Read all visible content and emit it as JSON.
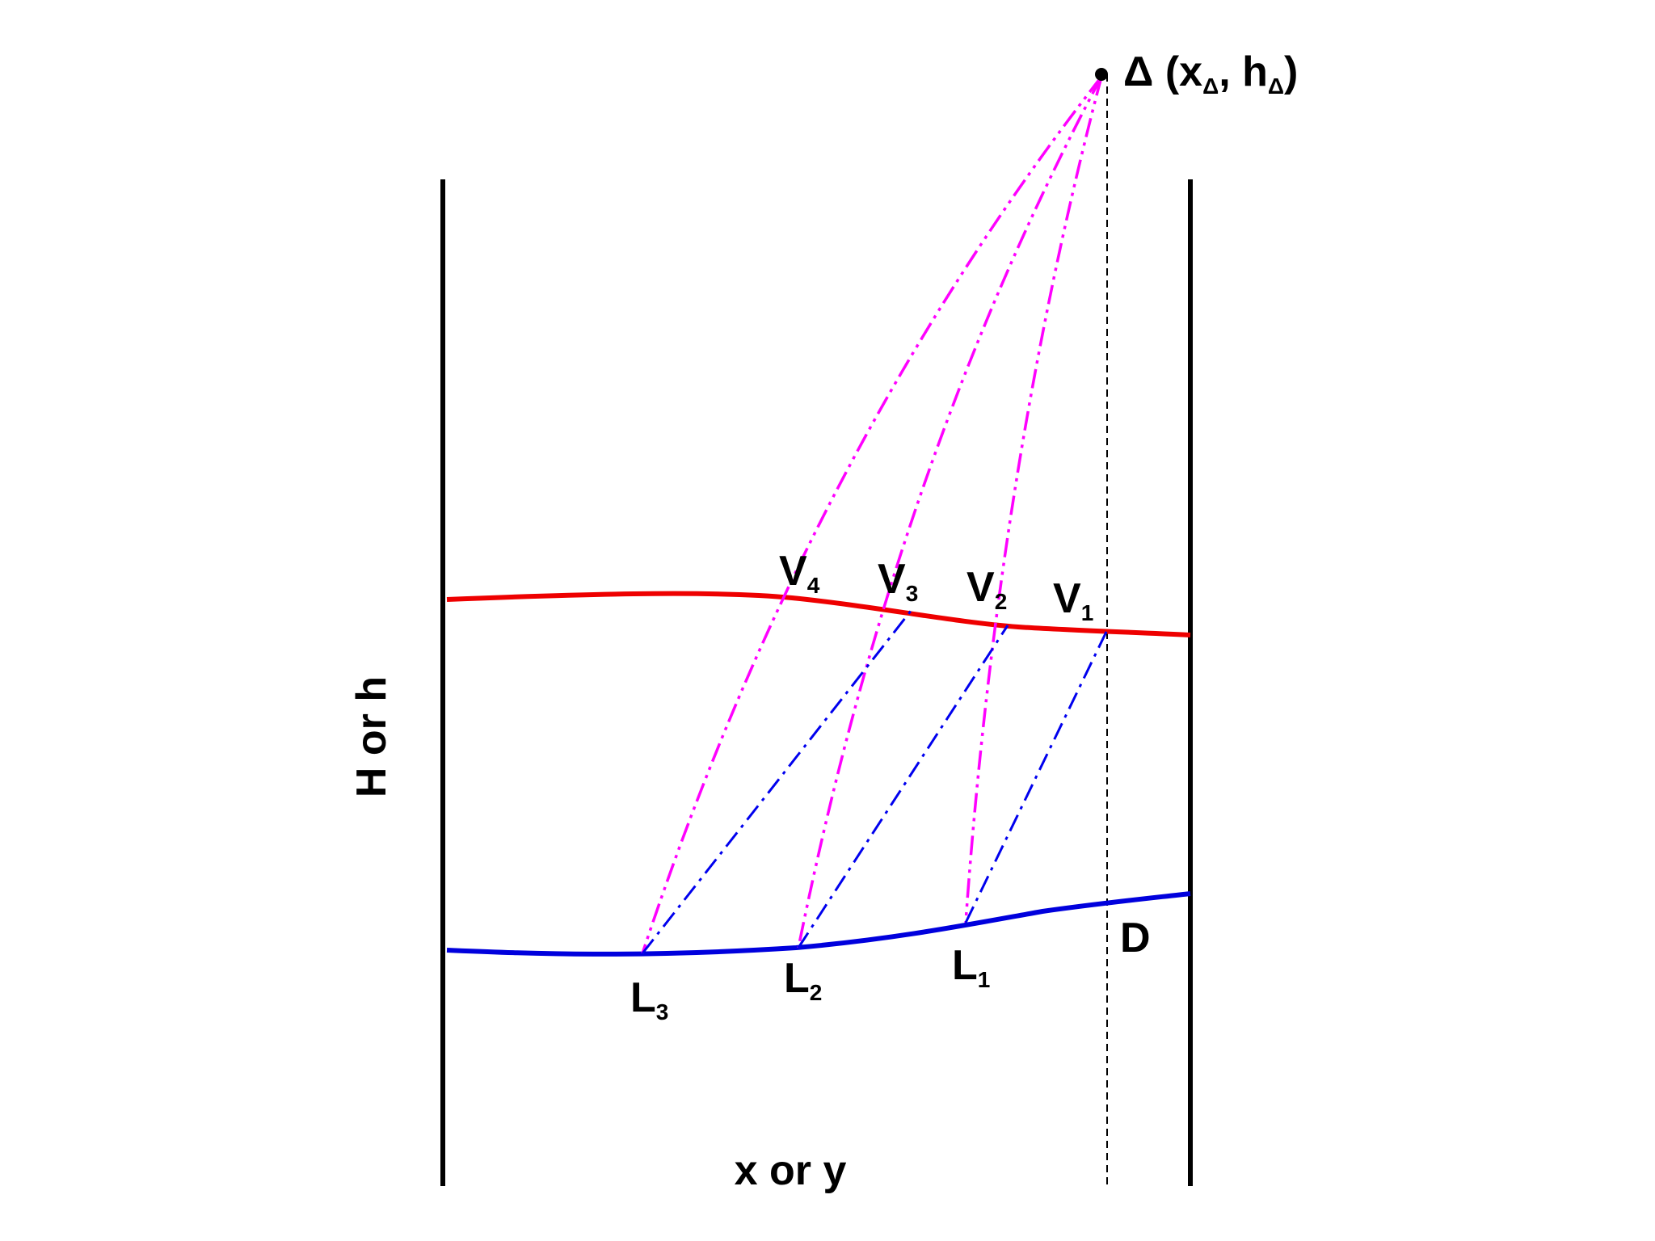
{
  "colors": {
    "upper_curve": "#ee0000",
    "lower_curve": "#0000dd",
    "magenta_lines": "#ff00ff",
    "blue_dashed_lines": "#0000ee",
    "frame": "#000000"
  },
  "labels": {
    "delta_point": {
      "prefix": "Δ (x",
      "sub1": "Δ",
      "mid": ", h",
      "sub2": "Δ",
      "suffix": ")"
    },
    "y_axis": "H or h",
    "x_axis": "x or y",
    "D": "D",
    "V": [
      {
        "base": "V",
        "sub": "4"
      },
      {
        "base": "V",
        "sub": "3"
      },
      {
        "base": "V",
        "sub": "2"
      },
      {
        "base": "V",
        "sub": "1"
      }
    ],
    "L": [
      {
        "base": "L",
        "sub": "3"
      },
      {
        "base": "L",
        "sub": "2"
      },
      {
        "base": "L",
        "sub": "1"
      }
    ]
  }
}
